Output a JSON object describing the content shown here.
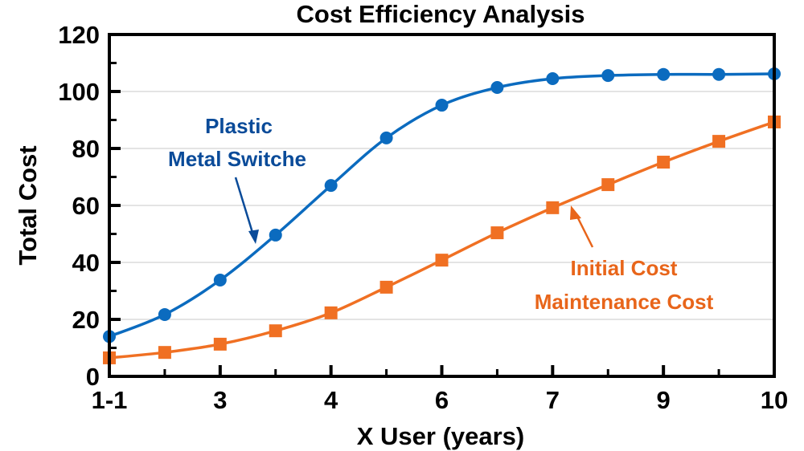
{
  "chart_data": {
    "type": "line",
    "title": "Cost Efficiency Analysis",
    "xlabel": "X User (years)",
    "ylabel": "Total Cost",
    "ylim": [
      0,
      120
    ],
    "yticks": [
      0,
      20,
      40,
      60,
      80,
      100,
      120
    ],
    "y_minor_ticks": [
      10,
      30,
      50,
      70,
      90,
      110
    ],
    "x_tick_labels": [
      {
        "index": 0,
        "label": "1-1"
      },
      {
        "index": 2,
        "label": "3"
      },
      {
        "index": 4,
        "label": "4"
      },
      {
        "index": 6,
        "label": "6"
      },
      {
        "index": 8,
        "label": "7"
      },
      {
        "index": 10,
        "label": "9"
      },
      {
        "index": 12,
        "label": "10"
      }
    ],
    "x_count": 13,
    "grid": "horizontal",
    "series": [
      {
        "name": "Plastic Metal Switche",
        "color": "#0b6bbf",
        "marker": "circle",
        "smooth": true,
        "values": [
          14,
          21.7,
          33.8,
          49.6,
          67,
          83.7,
          95.2,
          101.4,
          104.5,
          105.6,
          106,
          106,
          106.2
        ]
      },
      {
        "name": "Initial Cost Maintenance Cost",
        "color": "#f07023",
        "marker": "square",
        "smooth": true,
        "values": [
          6.5,
          8.4,
          11.3,
          16,
          22.3,
          31.3,
          40.8,
          50.4,
          59.2,
          67.3,
          75.2,
          82.5,
          89.3
        ]
      }
    ],
    "annotations": [
      {
        "series": 0,
        "lines": [
          "Plastic",
          "Metal Switche"
        ],
        "color": "#0a4b99",
        "points_to_index": 3
      },
      {
        "series": 1,
        "lines": [
          "Initial Cost",
          "Maintenance Cost"
        ],
        "color": "#e8651a",
        "points_to_index": 8
      }
    ]
  }
}
